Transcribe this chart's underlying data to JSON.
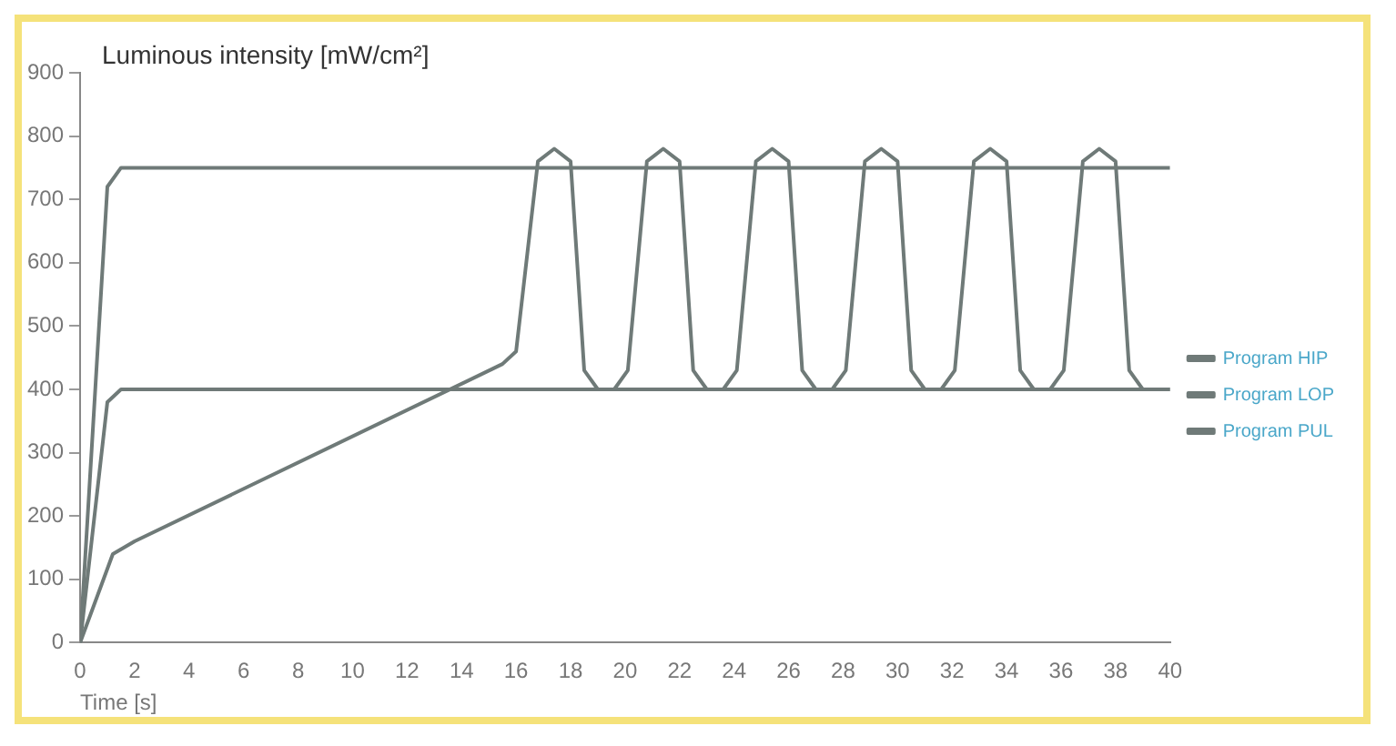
{
  "chart_data": {
    "type": "line",
    "xlabel": "Time [s]",
    "ylabel": "Luminous intensity [mW/cm²]",
    "series": [
      {
        "name": "Program HIP",
        "color": "#6f7a78",
        "x": [
          0,
          1,
          1.5,
          40
        ],
        "values": [
          0,
          720,
          750,
          750
        ]
      },
      {
        "name": "Program LOP",
        "color": "#6f7a78",
        "x": [
          0,
          1,
          1.5,
          40
        ],
        "values": [
          0,
          380,
          400,
          400
        ]
      },
      {
        "name": "Program PUL",
        "color": "#6f7a78",
        "x": [
          0,
          1.2,
          2,
          15.5,
          16,
          16.8,
          17.4,
          18,
          18.5,
          19,
          19.6,
          20.1,
          20.8,
          21.4,
          22,
          22.5,
          23,
          23.6,
          24.1,
          24.8,
          25.4,
          26,
          26.5,
          27,
          27.6,
          28.1,
          28.8,
          29.4,
          30,
          30.5,
          31,
          31.6,
          32.1,
          32.8,
          33.4,
          34,
          34.5,
          35,
          35.6,
          36.1,
          36.8,
          37.4,
          38,
          38.5,
          39,
          40
        ],
        "values": [
          0,
          140,
          160,
          440,
          460,
          760,
          780,
          760,
          430,
          400,
          400,
          430,
          760,
          780,
          760,
          430,
          400,
          400,
          430,
          760,
          780,
          760,
          430,
          400,
          400,
          430,
          760,
          780,
          760,
          430,
          400,
          400,
          430,
          760,
          780,
          760,
          430,
          400,
          400,
          430,
          760,
          780,
          760,
          430,
          400,
          400
        ]
      }
    ],
    "xlim": [
      0,
      40
    ],
    "xticks": [
      0,
      2,
      4,
      6,
      8,
      10,
      12,
      14,
      16,
      18,
      20,
      22,
      24,
      26,
      28,
      30,
      32,
      34,
      36,
      38,
      40
    ],
    "ylim": [
      0,
      900
    ],
    "yticks": [
      0,
      100,
      200,
      300,
      400,
      500,
      600,
      700,
      800,
      900
    ],
    "grid": false,
    "legend": "right",
    "marker": "none",
    "line_style": "solid"
  }
}
